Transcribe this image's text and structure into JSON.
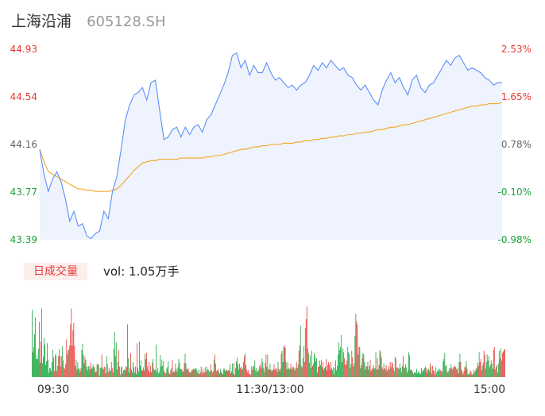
{
  "header": {
    "name": "上海沿浦",
    "code": "605128.SH"
  },
  "volume_panel": {
    "badge": "日成交量",
    "label": "vol: 1.05万手"
  },
  "colors": {
    "price_line": "#5b8ff9",
    "avg_line": "#f5a623",
    "area_fill": "#eef3fd",
    "up": "#e53935",
    "down": "#1aa33a",
    "neutral": "#666666"
  },
  "chart_data": [
    {
      "type": "line",
      "title": "",
      "y_ticks_left": [
        "44.93",
        "44.54",
        "44.16",
        "43.77",
        "43.39"
      ],
      "y_ticks_right": [
        "2.53%",
        "1.65%",
        "0.78%",
        "-0.10%",
        "-0.98%"
      ],
      "ylim": [
        43.39,
        44.93
      ],
      "prev_close": 43.81,
      "x_ticks": [
        "09:30",
        "11:30/13:00",
        "15:00"
      ],
      "series": [
        {
          "values": [
            44.12,
            43.92,
            43.78,
            43.88,
            43.94,
            43.86,
            43.72,
            43.54,
            43.62,
            43.5,
            43.52,
            43.42,
            43.4,
            43.44,
            43.46,
            43.62,
            43.56,
            43.78,
            43.9,
            44.12,
            44.36,
            44.48,
            44.56,
            44.58,
            44.62,
            44.52,
            44.66,
            44.68,
            44.44,
            44.2,
            44.22,
            44.28,
            44.3,
            44.22,
            44.3,
            44.24,
            44.3,
            44.32,
            44.26,
            44.36,
            44.4,
            44.48,
            44.56,
            44.64,
            44.74,
            44.88,
            44.9,
            44.78,
            44.84,
            44.72,
            44.8,
            44.74,
            44.74,
            44.82,
            44.74,
            44.68,
            44.7,
            44.66,
            44.62,
            44.64,
            44.6,
            44.64,
            44.66,
            44.72,
            44.8,
            44.76,
            44.82,
            44.78,
            44.84,
            44.8,
            44.76,
            44.78,
            44.72,
            44.7,
            44.64,
            44.6,
            44.64,
            44.58,
            44.52,
            44.48,
            44.6,
            44.68,
            44.74,
            44.66,
            44.7,
            44.62,
            44.56,
            44.68,
            44.72,
            44.62,
            44.58,
            44.64,
            44.66,
            44.72,
            44.78,
            44.84,
            44.8,
            44.86,
            44.88,
            44.82,
            44.76,
            44.78,
            44.76,
            44.74,
            44.7,
            44.68,
            44.64,
            44.66,
            44.66
          ]
        },
        {
          "values": [
            44.12,
            44.02,
            43.94,
            43.92,
            43.9,
            43.88,
            43.86,
            43.84,
            43.82,
            43.8,
            43.8,
            43.79,
            43.79,
            43.78,
            43.78,
            43.78,
            43.78,
            43.79,
            43.8,
            43.83,
            43.87,
            43.91,
            43.95,
            43.98,
            44.01,
            44.02,
            44.03,
            44.03,
            44.04,
            44.04,
            44.04,
            44.04,
            44.04,
            44.05,
            44.05,
            44.05,
            44.05,
            44.05,
            44.05,
            44.06,
            44.06,
            44.07,
            44.07,
            44.08,
            44.09,
            44.1,
            44.11,
            44.12,
            44.12,
            44.13,
            44.14,
            44.14,
            44.15,
            44.15,
            44.16,
            44.16,
            44.16,
            44.17,
            44.17,
            44.17,
            44.18,
            44.18,
            44.19,
            44.19,
            44.2,
            44.2,
            44.21,
            44.21,
            44.22,
            44.22,
            44.23,
            44.23,
            44.24,
            44.24,
            44.25,
            44.25,
            44.26,
            44.26,
            44.27,
            44.28,
            44.28,
            44.29,
            44.3,
            44.3,
            44.31,
            44.32,
            44.32,
            44.33,
            44.34,
            44.35,
            44.36,
            44.37,
            44.38,
            44.39,
            44.4,
            44.41,
            44.42,
            44.43,
            44.44,
            44.45,
            44.46,
            44.47,
            44.47,
            44.48,
            44.48,
            44.49,
            44.49,
            44.49,
            44.5
          ]
        }
      ]
    },
    {
      "type": "bar",
      "title": "",
      "ylim": [
        0,
        100
      ],
      "values": [
        89,
        33,
        40,
        57,
        79,
        24,
        29,
        24,
        38,
        73,
        19,
        47,
        91,
        18,
        27,
        52,
        43,
        16,
        21,
        45,
        23,
        6,
        12,
        12,
        8,
        20,
        36,
        26,
        8,
        30,
        29,
        8,
        15,
        28,
        37,
        28,
        14,
        28,
        41,
        22,
        13,
        11,
        18,
        50,
        30,
        35,
        37,
        42,
        70,
        91,
        42,
        62,
        72,
        41,
        15,
        23,
        10,
        20,
        12,
        11,
        7,
        12,
        36,
        44,
        30,
        18,
        27,
        23,
        14,
        9,
        14,
        15,
        10,
        19,
        13,
        11,
        17,
        14,
        13,
        7,
        7,
        18,
        16,
        17,
        2,
        12,
        13,
        30,
        12,
        10,
        14,
        13,
        5,
        28,
        17,
        7,
        12,
        8,
        9,
        20,
        12,
        6,
        38,
        60,
        28,
        46,
        10,
        20,
        36,
        14,
        3,
        13,
        14,
        5,
        9,
        10,
        9,
        15,
        13,
        70,
        25,
        6,
        12,
        32,
        10,
        6,
        20,
        13,
        6,
        14,
        4,
        45,
        12,
        7,
        47,
        15,
        22,
        9,
        9,
        13,
        9,
        31,
        24,
        32,
        14,
        9,
        20,
        6,
        15,
        7,
        19,
        24,
        11,
        9,
        10,
        43,
        7,
        12,
        5,
        7,
        29,
        14,
        23,
        15,
        21,
        8,
        6,
        5,
        11,
        13,
        21,
        6,
        4,
        9,
        12,
        23,
        6,
        8,
        7,
        18,
        11,
        7,
        13,
        24,
        19,
        11,
        10,
        11,
        7,
        8,
        19,
        31,
        18,
        11,
        10,
        12,
        7,
        6,
        6,
        9,
        9,
        11,
        11,
        10,
        12,
        11,
        8,
        5,
        10,
        4,
        7,
        14,
        5,
        11,
        7,
        6,
        13,
        8,
        14,
        10,
        10,
        7,
        8,
        17,
        9,
        6,
        8,
        23,
        30,
        18,
        8,
        9,
        11,
        7,
        5,
        11,
        7,
        5,
        4,
        11,
        11,
        8,
        9,
        10,
        8,
        9,
        9,
        17,
        5,
        8,
        18,
        5,
        19,
        3,
        12,
        21,
        26,
        17,
        10,
        18,
        12,
        14,
        10,
        12,
        20,
        28,
        32,
        16,
        10,
        7,
        9,
        4,
        5,
        3,
        14,
        10,
        15,
        14,
        22,
        9,
        12,
        7,
        8,
        10,
        15,
        17,
        12,
        25,
        20,
        12,
        7,
        19,
        30,
        14,
        30,
        10,
        10,
        18,
        10,
        8,
        9,
        10,
        17,
        10,
        11,
        12,
        7,
        20,
        11,
        8,
        11,
        31,
        35,
        20,
        40,
        42,
        39,
        20,
        10,
        19,
        12,
        10,
        12,
        18,
        10,
        13,
        14,
        12,
        9,
        12,
        20,
        12,
        17,
        35,
        42,
        68,
        15,
        13,
        25,
        41,
        20,
        65,
        77,
        94,
        38,
        32,
        19,
        29,
        12,
        35,
        15,
        18,
        32,
        28,
        21,
        25,
        6,
        14,
        14,
        22,
        16,
        23,
        13,
        20,
        10,
        12,
        14,
        24,
        9,
        16,
        20,
        17,
        10,
        20,
        12,
        9,
        13,
        4,
        12,
        22,
        9,
        15,
        30,
        46,
        36,
        40,
        56,
        20,
        38,
        33,
        25,
        16,
        17,
        22,
        40,
        33,
        31,
        12,
        17,
        35,
        26,
        14,
        18,
        55,
        84,
        74,
        70,
        30,
        40,
        40,
        12,
        16,
        25,
        32,
        30,
        20,
        10,
        15,
        14,
        20,
        10,
        15,
        23,
        8,
        10,
        12,
        16,
        11,
        12,
        33,
        10,
        25,
        10,
        16,
        36,
        33,
        26,
        13,
        10,
        18,
        12,
        10,
        16,
        8,
        11,
        15,
        10,
        20,
        13,
        20,
        18,
        12,
        8,
        27,
        25,
        12,
        13,
        12,
        11,
        18,
        12,
        7,
        15,
        28,
        13,
        12,
        17,
        13,
        6,
        9,
        33,
        29,
        10,
        9,
        10,
        7,
        4,
        6,
        6,
        6,
        11,
        5,
        8,
        5,
        7,
        4,
        12,
        7,
        10,
        9,
        12,
        14,
        12,
        6,
        10,
        11,
        8,
        18,
        14,
        5,
        15,
        9,
        8,
        3,
        13,
        6,
        8,
        11,
        8,
        11,
        9,
        8,
        7,
        21,
        24,
        32,
        15,
        16,
        8,
        6,
        8,
        12,
        11,
        17,
        12,
        10,
        13,
        15,
        14,
        13,
        10,
        12,
        5,
        20,
        31,
        20,
        10,
        7,
        4,
        8,
        13,
        14,
        21,
        11,
        3,
        5,
        4,
        9,
        7,
        3,
        4,
        10,
        6,
        8,
        11,
        12,
        19,
        15,
        33,
        20,
        24,
        9,
        15,
        19,
        35,
        30,
        11,
        20,
        30,
        22,
        28,
        13,
        16,
        22,
        18,
        11,
        36,
        40,
        10,
        14,
        16,
        6,
        18,
        35,
        25,
        38,
        22,
        32,
        34,
        36,
        37
      ],
      "directions": "dddddddudududduddudddddduddduuduuuduudduuuuuuduuuuuuuudduddduuddddudddddduudduddudududduduuuudduudduuudduddduududuudududddduddddddduddudduuuudduduudududddudddduddddduudddduuududduududdddduddudduduudududdudduuduuduuduuududdduuudduuudududududdduddudduddduuududduuuudduduuduuduuudddddduduuudduduuddudduuuduududdudduddduuduuddduuudduuudduuduudduuuuuddddduudduduuuuduuuudduuduuuuuddudududdudddduuduudduuduuuddduududduudddduddduuuduuddduuduuddudduuudduuuduuudduuddudddduudddudddduudddudduddududdudduudduudduuuuddudduuuddddddudduudduduuduuudduuuduuududdduuudddudduuduuuduuudddddddudduudduuddudduuuuduudduuudduuuudduuuddddddddddddu"
    }
  ]
}
